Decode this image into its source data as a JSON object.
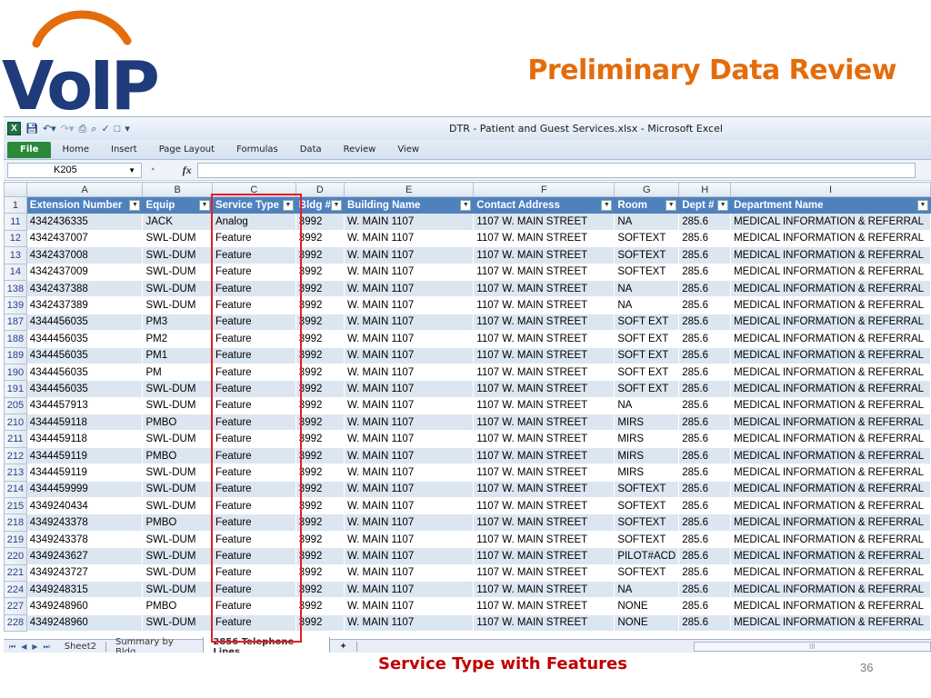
{
  "slide": {
    "logo_text": "VoIP",
    "title": "Preliminary Data Review",
    "caption": "Service Type with Features",
    "page_number": "36"
  },
  "colors": {
    "logo_blue": "#1f3b7a",
    "logo_arc": "#e46c0a",
    "title": "#e46c0a",
    "header_fill": "#4f81bd",
    "band_fill": "#dce6f1",
    "highlight": "#e81c24",
    "caption": "#c00000"
  },
  "excel": {
    "window_title": "DTR - Patient and Guest Services.xlsx - Microsoft Excel",
    "ribbon_tabs": [
      "File",
      "Home",
      "Insert",
      "Page Layout",
      "Formulas",
      "Data",
      "Review",
      "View"
    ],
    "name_box": "K205",
    "fx_label": "fx",
    "column_letters": [
      "A",
      "B",
      "C",
      "D",
      "E",
      "F",
      "G",
      "H",
      "I"
    ],
    "header_row_number": "1",
    "headers": [
      "Extension Number",
      "Equip",
      "Service Type",
      "Bldg #",
      "Building Name",
      "Contact Address",
      "Room",
      "Dept #",
      "Department Name"
    ],
    "rows": [
      {
        "n": "11",
        "cells": [
          "4342436335",
          "JACK",
          "Analog",
          "3992",
          "W. MAIN 1107",
          "1107 W. MAIN STREET",
          "NA",
          "285.6",
          "MEDICAL INFORMATION & REFERRAL"
        ]
      },
      {
        "n": "12",
        "cells": [
          "4342437007",
          "SWL-DUM",
          "Feature",
          "3992",
          "W. MAIN 1107",
          "1107 W. MAIN STREET",
          "SOFTEXT",
          "285.6",
          "MEDICAL INFORMATION & REFERRAL"
        ]
      },
      {
        "n": "13",
        "cells": [
          "4342437008",
          "SWL-DUM",
          "Feature",
          "3992",
          "W. MAIN 1107",
          "1107 W. MAIN STREET",
          "SOFTEXT",
          "285.6",
          "MEDICAL INFORMATION & REFERRAL"
        ]
      },
      {
        "n": "14",
        "cells": [
          "4342437009",
          "SWL-DUM",
          "Feature",
          "3992",
          "W. MAIN 1107",
          "1107 W. MAIN STREET",
          "SOFTEXT",
          "285.6",
          "MEDICAL INFORMATION & REFERRAL"
        ]
      },
      {
        "n": "138",
        "cells": [
          "4342437388",
          "SWL-DUM",
          "Feature",
          "3992",
          "W. MAIN 1107",
          "1107 W. MAIN STREET",
          "NA",
          "285.6",
          "MEDICAL INFORMATION & REFERRAL"
        ]
      },
      {
        "n": "139",
        "cells": [
          "4342437389",
          "SWL-DUM",
          "Feature",
          "3992",
          "W. MAIN 1107",
          "1107 W. MAIN STREET",
          "NA",
          "285.6",
          "MEDICAL INFORMATION & REFERRAL"
        ]
      },
      {
        "n": "187",
        "cells": [
          "4344456035",
          "PM3",
          "Feature",
          "3992",
          "W. MAIN 1107",
          "1107 W. MAIN STREET",
          "SOFT EXT",
          "285.6",
          "MEDICAL INFORMATION & REFERRAL"
        ]
      },
      {
        "n": "188",
        "cells": [
          "4344456035",
          "PM2",
          "Feature",
          "3992",
          "W. MAIN 1107",
          "1107 W. MAIN STREET",
          "SOFT EXT",
          "285.6",
          "MEDICAL INFORMATION & REFERRAL"
        ]
      },
      {
        "n": "189",
        "cells": [
          "4344456035",
          "PM1",
          "Feature",
          "3992",
          "W. MAIN 1107",
          "1107 W. MAIN STREET",
          "SOFT EXT",
          "285.6",
          "MEDICAL INFORMATION & REFERRAL"
        ]
      },
      {
        "n": "190",
        "cells": [
          "4344456035",
          "PM",
          "Feature",
          "3992",
          "W. MAIN 1107",
          "1107 W. MAIN STREET",
          "SOFT EXT",
          "285.6",
          "MEDICAL INFORMATION & REFERRAL"
        ]
      },
      {
        "n": "191",
        "cells": [
          "4344456035",
          "SWL-DUM",
          "Feature",
          "3992",
          "W. MAIN 1107",
          "1107 W. MAIN STREET",
          "SOFT EXT",
          "285.6",
          "MEDICAL INFORMATION & REFERRAL"
        ]
      },
      {
        "n": "205",
        "cells": [
          "4344457913",
          "SWL-DUM",
          "Feature",
          "3992",
          "W. MAIN 1107",
          "1107 W. MAIN STREET",
          "NA",
          "285.6",
          "MEDICAL INFORMATION & REFERRAL"
        ]
      },
      {
        "n": "210",
        "cells": [
          "4344459118",
          "PMBO",
          "Feature",
          "3992",
          "W. MAIN 1107",
          "1107 W. MAIN STREET",
          "MIRS",
          "285.6",
          "MEDICAL INFORMATION & REFERRAL"
        ]
      },
      {
        "n": "211",
        "cells": [
          "4344459118",
          "SWL-DUM",
          "Feature",
          "3992",
          "W. MAIN 1107",
          "1107 W. MAIN STREET",
          "MIRS",
          "285.6",
          "MEDICAL INFORMATION & REFERRAL"
        ]
      },
      {
        "n": "212",
        "cells": [
          "4344459119",
          "PMBO",
          "Feature",
          "3992",
          "W. MAIN 1107",
          "1107 W. MAIN STREET",
          "MIRS",
          "285.6",
          "MEDICAL INFORMATION & REFERRAL"
        ]
      },
      {
        "n": "213",
        "cells": [
          "4344459119",
          "SWL-DUM",
          "Feature",
          "3992",
          "W. MAIN 1107",
          "1107 W. MAIN STREET",
          "MIRS",
          "285.6",
          "MEDICAL INFORMATION & REFERRAL"
        ]
      },
      {
        "n": "214",
        "cells": [
          "4344459999",
          "SWL-DUM",
          "Feature",
          "3992",
          "W. MAIN 1107",
          "1107 W. MAIN STREET",
          "SOFTEXT",
          "285.6",
          "MEDICAL INFORMATION & REFERRAL"
        ]
      },
      {
        "n": "215",
        "cells": [
          "4349240434",
          "SWL-DUM",
          "Feature",
          "3992",
          "W. MAIN 1107",
          "1107 W. MAIN STREET",
          "SOFTEXT",
          "285.6",
          "MEDICAL INFORMATION & REFERRAL"
        ]
      },
      {
        "n": "218",
        "cells": [
          "4349243378",
          "PMBO",
          "Feature",
          "3992",
          "W. MAIN 1107",
          "1107 W. MAIN STREET",
          "SOFTEXT",
          "285.6",
          "MEDICAL INFORMATION & REFERRAL"
        ]
      },
      {
        "n": "219",
        "cells": [
          "4349243378",
          "SWL-DUM",
          "Feature",
          "3992",
          "W. MAIN 1107",
          "1107 W. MAIN STREET",
          "SOFTEXT",
          "285.6",
          "MEDICAL INFORMATION & REFERRAL"
        ]
      },
      {
        "n": "220",
        "cells": [
          "4349243627",
          "SWL-DUM",
          "Feature",
          "3992",
          "W. MAIN 1107",
          "1107 W. MAIN STREET",
          "PILOT#ACD",
          "285.6",
          "MEDICAL INFORMATION & REFERRAL"
        ]
      },
      {
        "n": "221",
        "cells": [
          "4349243727",
          "SWL-DUM",
          "Feature",
          "3992",
          "W. MAIN 1107",
          "1107 W. MAIN STREET",
          "SOFTEXT",
          "285.6",
          "MEDICAL INFORMATION & REFERRAL"
        ]
      },
      {
        "n": "224",
        "cells": [
          "4349248315",
          "SWL-DUM",
          "Feature",
          "3992",
          "W. MAIN 1107",
          "1107 W. MAIN STREET",
          "NA",
          "285.6",
          "MEDICAL INFORMATION & REFERRAL"
        ]
      },
      {
        "n": "227",
        "cells": [
          "4349248960",
          "PMBO",
          "Feature",
          "3992",
          "W. MAIN 1107",
          "1107 W. MAIN STREET",
          "NONE",
          "285.6",
          "MEDICAL INFORMATION & REFERRAL"
        ]
      },
      {
        "n": "228",
        "cells": [
          "4349248960",
          "SWL-DUM",
          "Feature",
          "3992",
          "W. MAIN 1107",
          "1107 W. MAIN STREET",
          "NONE",
          "285.6",
          "MEDICAL INFORMATION & REFERRAL"
        ]
      }
    ],
    "sheet_tabs": [
      "Sheet2",
      "Summary by Bldg",
      "2856 Telephone Lines"
    ],
    "active_sheet": "2856 Telephone Lines",
    "scroll_mark": "III"
  }
}
